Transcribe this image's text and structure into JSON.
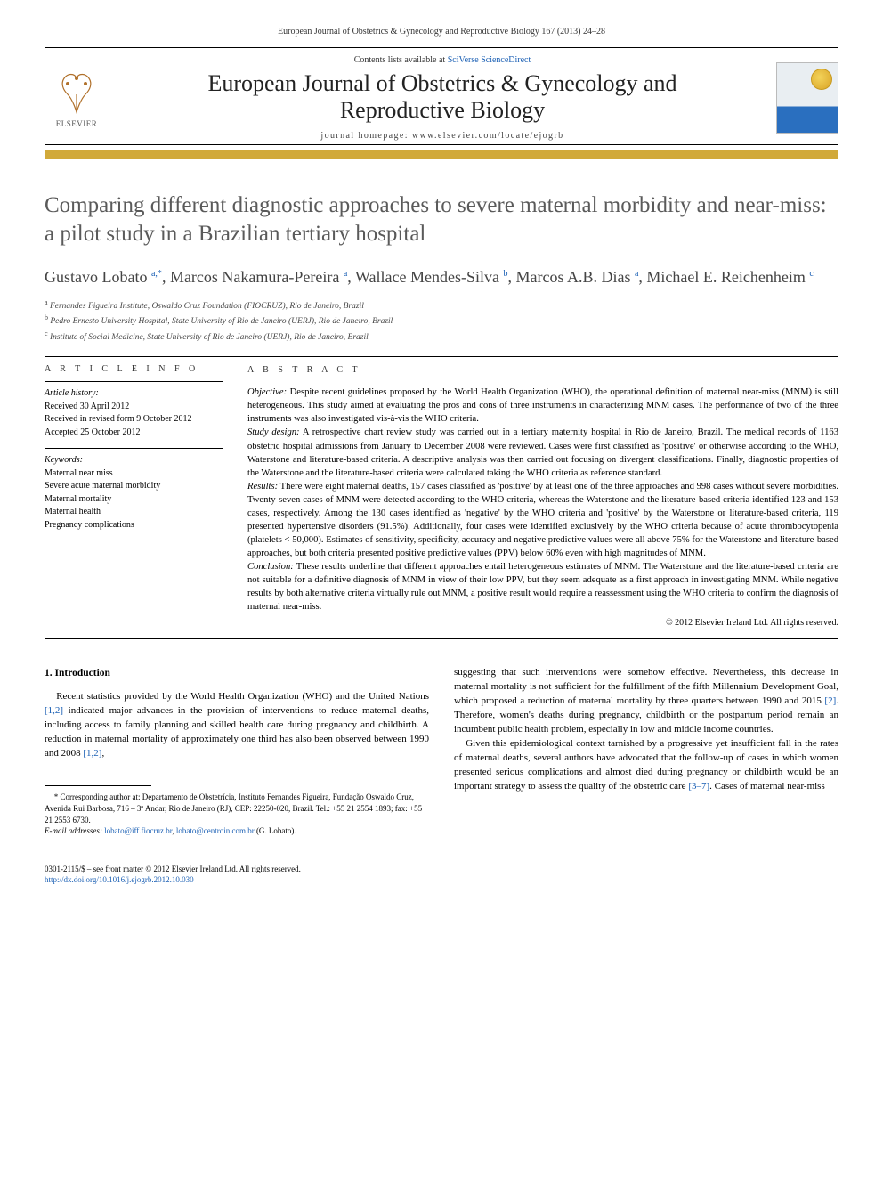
{
  "header": {
    "running_head": "European Journal of Obstetrics & Gynecology and Reproductive Biology 167 (2013) 24–28",
    "contents_prefix": "Contents lists available at ",
    "contents_link": "SciVerse ScienceDirect",
    "journal_title_line1": "European Journal of Obstetrics & Gynecology and",
    "journal_title_line2": "Reproductive Biology",
    "homepage_label": "journal homepage: www.elsevier.com/locate/ejogrb",
    "elsevier_wordmark": "ELSEVIER"
  },
  "article": {
    "title": "Comparing different diagnostic approaches to severe maternal morbidity and near-miss: a pilot study in a Brazilian tertiary hospital",
    "authors_html": "Gustavo Lobato <sup>a,*</sup>, Marcos Nakamura-Pereira <sup>a</sup>, Wallace Mendes-Silva <sup>b</sup>, Marcos A.B. Dias <sup>a</sup>, Michael E. Reichenheim <sup>c</sup>",
    "affiliations": [
      "a Fernandes Figueira Institute, Oswaldo Cruz Foundation (FIOCRUZ), Rio de Janeiro, Brazil",
      "b Pedro Ernesto University Hospital, State University of Rio de Janeiro (UERJ), Rio de Janeiro, Brazil",
      "c Institute of Social Medicine, State University of Rio de Janeiro (UERJ), Rio de Janeiro, Brazil"
    ]
  },
  "article_info": {
    "label": "A R T I C L E   I N F O",
    "history_title": "Article history:",
    "history": [
      "Received 30 April 2012",
      "Received in revised form 9 October 2012",
      "Accepted 25 October 2012"
    ],
    "keywords_title": "Keywords:",
    "keywords": [
      "Maternal near miss",
      "Severe acute maternal morbidity",
      "Maternal mortality",
      "Maternal health",
      "Pregnancy complications"
    ]
  },
  "abstract": {
    "label": "A B S T R A C T",
    "objective_label": "Objective:",
    "objective": " Despite recent guidelines proposed by the World Health Organization (WHO), the operational definition of maternal near-miss (MNM) is still heterogeneous. This study aimed at evaluating the pros and cons of three instruments in characterizing MNM cases. The performance of two of the three instruments was also investigated vis-à-vis the WHO criteria.",
    "design_label": "Study design:",
    "design": " A retrospective chart review study was carried out in a tertiary maternity hospital in Rio de Janeiro, Brazil. The medical records of 1163 obstetric hospital admissions from January to December 2008 were reviewed. Cases were first classified as 'positive' or otherwise according to the WHO, Waterstone and literature-based criteria. A descriptive analysis was then carried out focusing on divergent classifications. Finally, diagnostic properties of the Waterstone and the literature-based criteria were calculated taking the WHO criteria as reference standard.",
    "results_label": "Results:",
    "results": " There were eight maternal deaths, 157 cases classified as 'positive' by at least one of the three approaches and 998 cases without severe morbidities. Twenty-seven cases of MNM were detected according to the WHO criteria, whereas the Waterstone and the literature-based criteria identified 123 and 153 cases, respectively. Among the 130 cases identified as 'negative' by the WHO criteria and 'positive' by the Waterstone or literature-based criteria, 119 presented hypertensive disorders (91.5%). Additionally, four cases were identified exclusively by the WHO criteria because of acute thrombocytopenia (platelets < 50,000). Estimates of sensitivity, specificity, accuracy and negative predictive values were all above 75% for the Waterstone and literature-based approaches, but both criteria presented positive predictive values (PPV) below 60% even with high magnitudes of MNM.",
    "conclusion_label": "Conclusion:",
    "conclusion": " These results underline that different approaches entail heterogeneous estimates of MNM. The Waterstone and the literature-based criteria are not suitable for a definitive diagnosis of MNM in view of their low PPV, but they seem adequate as a first approach in investigating MNM. While negative results by both alternative criteria virtually rule out MNM, a positive result would require a reassessment using the WHO criteria to confirm the diagnosis of maternal near-miss.",
    "copyright": "© 2012 Elsevier Ireland Ltd. All rights reserved."
  },
  "body": {
    "intro_heading": "1. Introduction",
    "col1_p1_a": "Recent statistics provided by the World Health Organization (WHO) and the United Nations ",
    "col1_ref1": "[1,2]",
    "col1_p1_b": " indicated major advances in the provision of interventions to reduce maternal deaths, including access to family planning and skilled health care during pregnancy and childbirth. A reduction in maternal mortality of approximately one third has also been observed between 1990 and 2008 ",
    "col1_ref2": "[1,2]",
    "col1_p1_c": ",",
    "col2_p1_a": "suggesting that such interventions were somehow effective. Nevertheless, this decrease in maternal mortality is not sufficient for the fulfillment of the fifth Millennium Development Goal, which proposed a reduction of maternal mortality by three quarters between 1990 and 2015 ",
    "col2_ref1": "[2]",
    "col2_p1_b": ". Therefore, women's deaths during pregnancy, childbirth or the postpartum period remain an incumbent public health problem, especially in low and middle income countries.",
    "col2_p2_a": "Given this epidemiological context tarnished by a progressive yet insufficient fall in the rates of maternal deaths, several authors have advocated that the follow-up of cases in which women presented serious complications and almost died during pregnancy or childbirth would be an important strategy to assess the quality of the obstetric care ",
    "col2_ref2": "[3–7]",
    "col2_p2_b": ". Cases of maternal near-miss"
  },
  "footnote": {
    "corr_label": "* Corresponding author at:",
    "corr_text": " Departamento de Obstetrícia, Instituto Fernandes Figueira, Fundação Oswaldo Cruz, Avenida Rui Barbosa, 716 – 3º Andar, Rio de Janeiro (RJ), CEP: 22250-020, Brazil. Tel.: +55 21 2554 1893; fax: +55 21 2553 6730.",
    "email_label": "E-mail addresses:",
    "email1": " lobato@iff.fiocruz.br",
    "email_sep": ", ",
    "email2": "lobato@centroin.com.br",
    "email_suffix": " (G. Lobato)."
  },
  "doi": {
    "front_matter": "0301-2115/$ – see front matter © 2012 Elsevier Ireland Ltd. All rights reserved.",
    "doi_url": "http://dx.doi.org/10.1016/j.ejogrb.2012.10.030"
  },
  "colors": {
    "link": "#1a5fb4",
    "gold_bar": "#d1a93a",
    "title_gray": "#5a5a5a"
  }
}
